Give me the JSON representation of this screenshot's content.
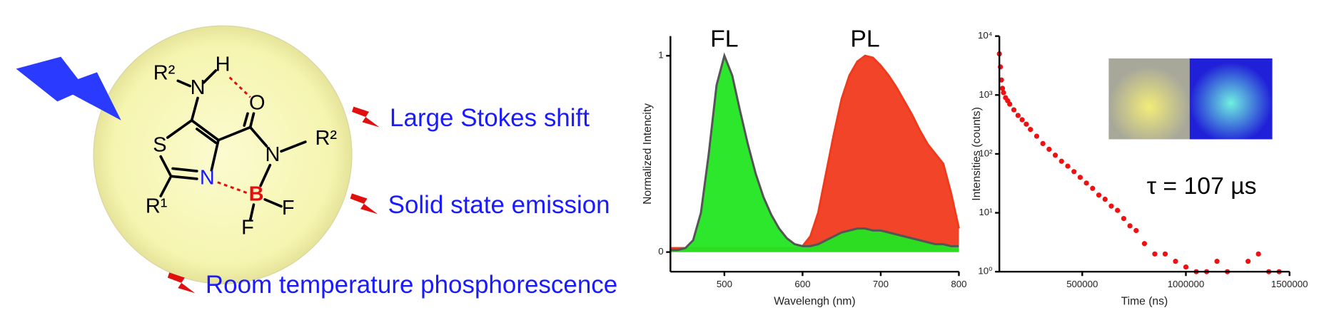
{
  "molecule": {
    "atoms": [
      "R²",
      "N",
      "H",
      "O",
      "S",
      "N",
      "N",
      "R²",
      "B",
      "F",
      "F",
      "R¹"
    ]
  },
  "bullets": [
    "Large Stokes shift",
    "Solid state emission",
    "Room temperature phosphorescence"
  ],
  "chart_data": [
    {
      "type": "line",
      "xlabel": "Wavelengh (nm)",
      "ylabel": "Normalized Intencity",
      "x": [
        430,
        440,
        450,
        460,
        470,
        480,
        490,
        500,
        510,
        520,
        530,
        540,
        550,
        560,
        570,
        580,
        590,
        600,
        610,
        620,
        630,
        640,
        650,
        660,
        670,
        680,
        690,
        700,
        710,
        720,
        730,
        740,
        750,
        760,
        770,
        780,
        790,
        800
      ],
      "series": [
        {
          "name": "PL",
          "color": "#f03a1c",
          "values": [
            0.02,
            0.02,
            0.02,
            0.02,
            0.02,
            0.02,
            0.02,
            0.02,
            0.02,
            0.02,
            0.02,
            0.02,
            0.02,
            0.02,
            0.02,
            0.02,
            0.02,
            0.03,
            0.08,
            0.2,
            0.4,
            0.6,
            0.78,
            0.9,
            0.97,
            1.0,
            0.99,
            0.95,
            0.9,
            0.84,
            0.77,
            0.7,
            0.62,
            0.55,
            0.5,
            0.45,
            0.3,
            0.12
          ]
        },
        {
          "name": "FL",
          "color": "#22e622",
          "values": [
            0.01,
            0.01,
            0.02,
            0.06,
            0.2,
            0.5,
            0.85,
            1.0,
            0.9,
            0.72,
            0.55,
            0.4,
            0.28,
            0.19,
            0.12,
            0.07,
            0.04,
            0.03,
            0.03,
            0.04,
            0.06,
            0.08,
            0.1,
            0.11,
            0.12,
            0.12,
            0.11,
            0.11,
            0.1,
            0.09,
            0.08,
            0.07,
            0.06,
            0.05,
            0.04,
            0.04,
            0.03,
            0.03
          ]
        }
      ],
      "xlim": [
        431,
        800
      ],
      "xticks": [
        500,
        600,
        700,
        800
      ],
      "ylim": [
        -0.1,
        1.1
      ],
      "yticks": [
        0,
        1
      ]
    },
    {
      "type": "scatter",
      "xlabel": "Time (ns)",
      "ylabel": "Intensities (counts)",
      "annotation": "τ = 107 µs",
      "color": "#ee1111",
      "log_y": true,
      "x": [
        100000,
        105000,
        110000,
        115000,
        120000,
        130000,
        140000,
        150000,
        170000,
        190000,
        210000,
        230000,
        250000,
        280000,
        310000,
        340000,
        370000,
        400000,
        430000,
        460000,
        490000,
        520000,
        550000,
        580000,
        610000,
        640000,
        670000,
        700000,
        730000,
        760000,
        800000,
        850000,
        900000,
        950000,
        1000000,
        1050000,
        1100000,
        1150000,
        1200000,
        1300000,
        1350000,
        1400000,
        1450000
      ],
      "values": [
        5000,
        3000,
        1800,
        1300,
        1100,
        900,
        800,
        700,
        560,
        450,
        380,
        320,
        260,
        200,
        150,
        120,
        95,
        75,
        62,
        50,
        40,
        32,
        26,
        20,
        17,
        13,
        11,
        8,
        6,
        5,
        3,
        2,
        2,
        1.5,
        1.2,
        1,
        1,
        1.5,
        1,
        1.5,
        2,
        1,
        1
      ],
      "xlim": [
        100000,
        1500000
      ],
      "xticks": [
        500000,
        1000000,
        1500000
      ],
      "ylim": [
        1,
        10000
      ],
      "yticks": [
        {
          "value": 1,
          "label": "10⁰"
        },
        {
          "value": 10,
          "label": "10¹"
        },
        {
          "value": 100,
          "label": "10²"
        },
        {
          "value": 1000,
          "label": "10³"
        },
        {
          "value": 10000,
          "label": "10⁴"
        }
      ]
    }
  ]
}
